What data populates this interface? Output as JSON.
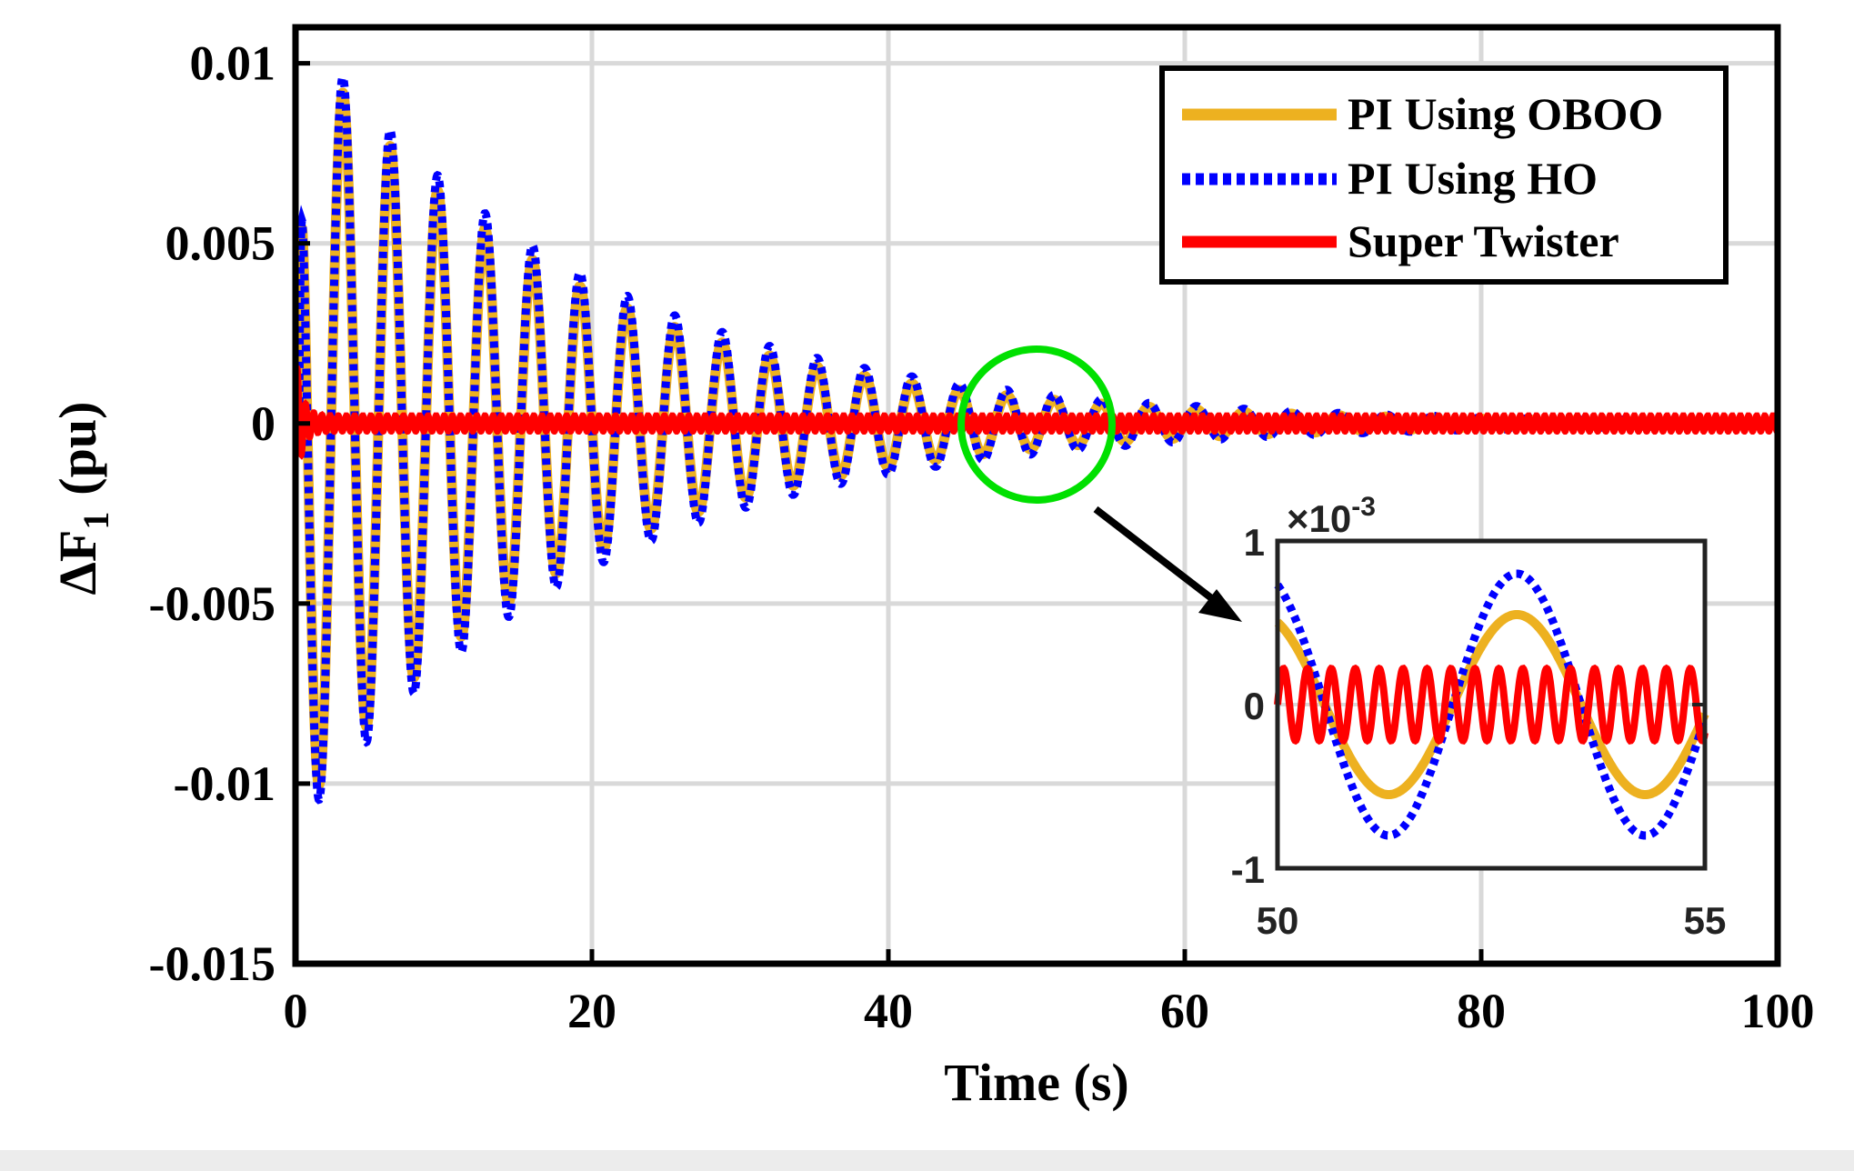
{
  "chart_data": {
    "type": "line",
    "title": "",
    "xlabel": "Time (s)",
    "ylabel_main": "ΔF",
    "ylabel_sub": "1",
    "ylabel_unit": "(pu)",
    "xlim": [
      0,
      100
    ],
    "ylim": [
      -0.015,
      0.011
    ],
    "grid": true,
    "x_ticks": [
      "0",
      "20",
      "40",
      "60",
      "80",
      "100"
    ],
    "x_tick_values": [
      0,
      20,
      40,
      60,
      80,
      100
    ],
    "y_ticks": [
      "0.01",
      "0.005",
      "0",
      "-0.005",
      "-0.01",
      "-0.015"
    ],
    "y_tick_values": [
      0.01,
      0.005,
      0,
      -0.005,
      -0.01,
      -0.015
    ],
    "legend_position": "top-right",
    "series": [
      {
        "name": "PI Using OBOO",
        "color": "#EDB120",
        "style": "solid",
        "model": {
          "amplitude": 0.0108,
          "decay": 0.055,
          "period": 3.2,
          "phase_delay": 0.55,
          "offset": -0.0012
        }
      },
      {
        "name": "PI Using HO",
        "color": "#0000FF",
        "style": "dotted",
        "model": {
          "amplitude": 0.0112,
          "decay": 0.052,
          "period": 3.2,
          "phase_delay": 0.55,
          "offset": -0.0012
        }
      },
      {
        "name": "Super Twister",
        "color": "#FF0000",
        "style": "solid",
        "model": {
          "amplitude": 0.0018,
          "decay": 2.5,
          "period": 0.55,
          "steady_amplitude": 0.00022
        }
      }
    ],
    "inset": {
      "xlim": [
        50,
        55
      ],
      "ylim": [
        -1,
        1
      ],
      "y_multiplier": "×10",
      "y_multiplier_exp": "-3",
      "x_ticks": [
        "50",
        "55"
      ],
      "x_tick_values": [
        50,
        55
      ],
      "y_ticks": [
        "1",
        "0",
        "-1"
      ],
      "y_tick_values": [
        1,
        0,
        -1
      ],
      "series_values": {
        "PI Using OBOO": {
          "amplitude": 0.55,
          "period": 3.0,
          "peak_at": 52.8
        },
        "PI Using HO": {
          "amplitude": 0.8,
          "period": 3.0,
          "peak_at": 52.8
        },
        "Super Twister": {
          "amplitude": 0.22,
          "period": 0.28
        }
      }
    },
    "annotation": {
      "type": "zoom-circle",
      "center": [
        50,
        0.0001
      ],
      "points_to": "inset"
    }
  },
  "colors": {
    "oboo": "#EDB120",
    "ho": "#0000FF",
    "st": "#FF0000",
    "grid": "#D9D9D9",
    "highlight": "#00E000"
  }
}
